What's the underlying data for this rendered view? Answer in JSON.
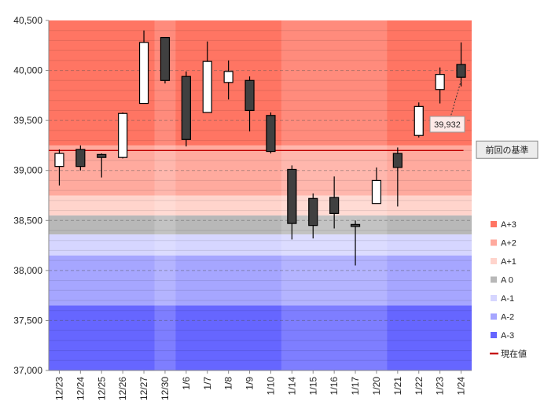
{
  "chart_data": {
    "type": "candlestick",
    "ylim": [
      37000,
      40500
    ],
    "y_ticks": [
      "37,000",
      "37,500",
      "38,000",
      "38,500",
      "39,000",
      "39,500",
      "40,000",
      "40,500"
    ],
    "y_tick_values": [
      37000,
      37500,
      38000,
      38500,
      39000,
      39500,
      40000,
      40500
    ],
    "categories": [
      "12/23",
      "12/24",
      "12/25",
      "12/26",
      "12/27",
      "12/30",
      "1/6",
      "1/7",
      "1/8",
      "1/9",
      "1/10",
      "1/14",
      "1/15",
      "1/16",
      "1/17",
      "1/20",
      "1/21",
      "1/22",
      "1/23",
      "1/24"
    ],
    "candles": [
      {
        "date": "12/23",
        "open": 39040,
        "high": 39210,
        "low": 38850,
        "close": 39170
      },
      {
        "date": "12/24",
        "open": 39210,
        "high": 39250,
        "low": 39000,
        "close": 39040
      },
      {
        "date": "12/25",
        "open": 39160,
        "high": 39170,
        "low": 38930,
        "close": 39130
      },
      {
        "date": "12/26",
        "open": 39130,
        "high": 39580,
        "low": 39120,
        "close": 39570
      },
      {
        "date": "12/27",
        "open": 39670,
        "high": 40400,
        "low": 39670,
        "close": 40280
      },
      {
        "date": "12/30",
        "open": 40330,
        "high": 40330,
        "low": 39870,
        "close": 39900
      },
      {
        "date": "1/6",
        "open": 39940,
        "high": 39990,
        "low": 39240,
        "close": 39310
      },
      {
        "date": "1/7",
        "open": 39580,
        "high": 40290,
        "low": 39580,
        "close": 40090
      },
      {
        "date": "1/8",
        "open": 39880,
        "high": 40100,
        "low": 39710,
        "close": 39990
      },
      {
        "date": "1/9",
        "open": 39900,
        "high": 39940,
        "low": 39390,
        "close": 39600
      },
      {
        "date": "1/10",
        "open": 39550,
        "high": 39580,
        "low": 39170,
        "close": 39190
      },
      {
        "date": "1/14",
        "open": 39010,
        "high": 39050,
        "low": 38310,
        "close": 38470
      },
      {
        "date": "1/15",
        "open": 38720,
        "high": 38770,
        "low": 38320,
        "close": 38450
      },
      {
        "date": "1/16",
        "open": 38730,
        "high": 38940,
        "low": 38420,
        "close": 38570
      },
      {
        "date": "1/17",
        "open": 38460,
        "high": 38500,
        "low": 38050,
        "close": 38440
      },
      {
        "date": "1/20",
        "open": 38670,
        "high": 39030,
        "low": 38670,
        "close": 38900
      },
      {
        "date": "1/21",
        "open": 39170,
        "high": 39230,
        "low": 38640,
        "close": 39030
      },
      {
        "date": "1/22",
        "open": 39350,
        "high": 39680,
        "low": 39330,
        "close": 39640
      },
      {
        "date": "1/23",
        "open": 39810,
        "high": 40030,
        "low": 39670,
        "close": 39960
      },
      {
        "date": "1/24",
        "open": 40060,
        "high": 40280,
        "low": 39840,
        "close": 39932
      }
    ],
    "zones": [
      {
        "name": "A+3",
        "from": 39250,
        "to": 40500,
        "color": "#ff7563"
      },
      {
        "name": "A+2",
        "from": 38750,
        "to": 39250,
        "color": "#ffaa9e"
      },
      {
        "name": "A+1",
        "from": 38550,
        "to": 38750,
        "color": "#ffd4cc"
      },
      {
        "name": "A 0",
        "from": 38360,
        "to": 38550,
        "color": "#b8b8b8"
      },
      {
        "name": "A-1",
        "from": 38150,
        "to": 38360,
        "color": "#d6d6ff"
      },
      {
        "name": "A-2",
        "from": 37650,
        "to": 38150,
        "color": "#a6a6ff"
      },
      {
        "name": "A-3",
        "from": 37000,
        "to": 37650,
        "color": "#6666ff"
      }
    ],
    "current_value": {
      "label": "現在値",
      "value": 39200,
      "color": "#c00000"
    },
    "reference_label": "前回の基準",
    "last_price_label": "39,932",
    "legend": [
      "A+3",
      "A+2",
      "A+1",
      "A 0",
      "A-1",
      "A-2",
      "A-3",
      "現在値"
    ],
    "colors": {
      "bull_fill": "#ffffff",
      "bear_fill": "#404040",
      "candle_stroke": "#000000"
    }
  }
}
